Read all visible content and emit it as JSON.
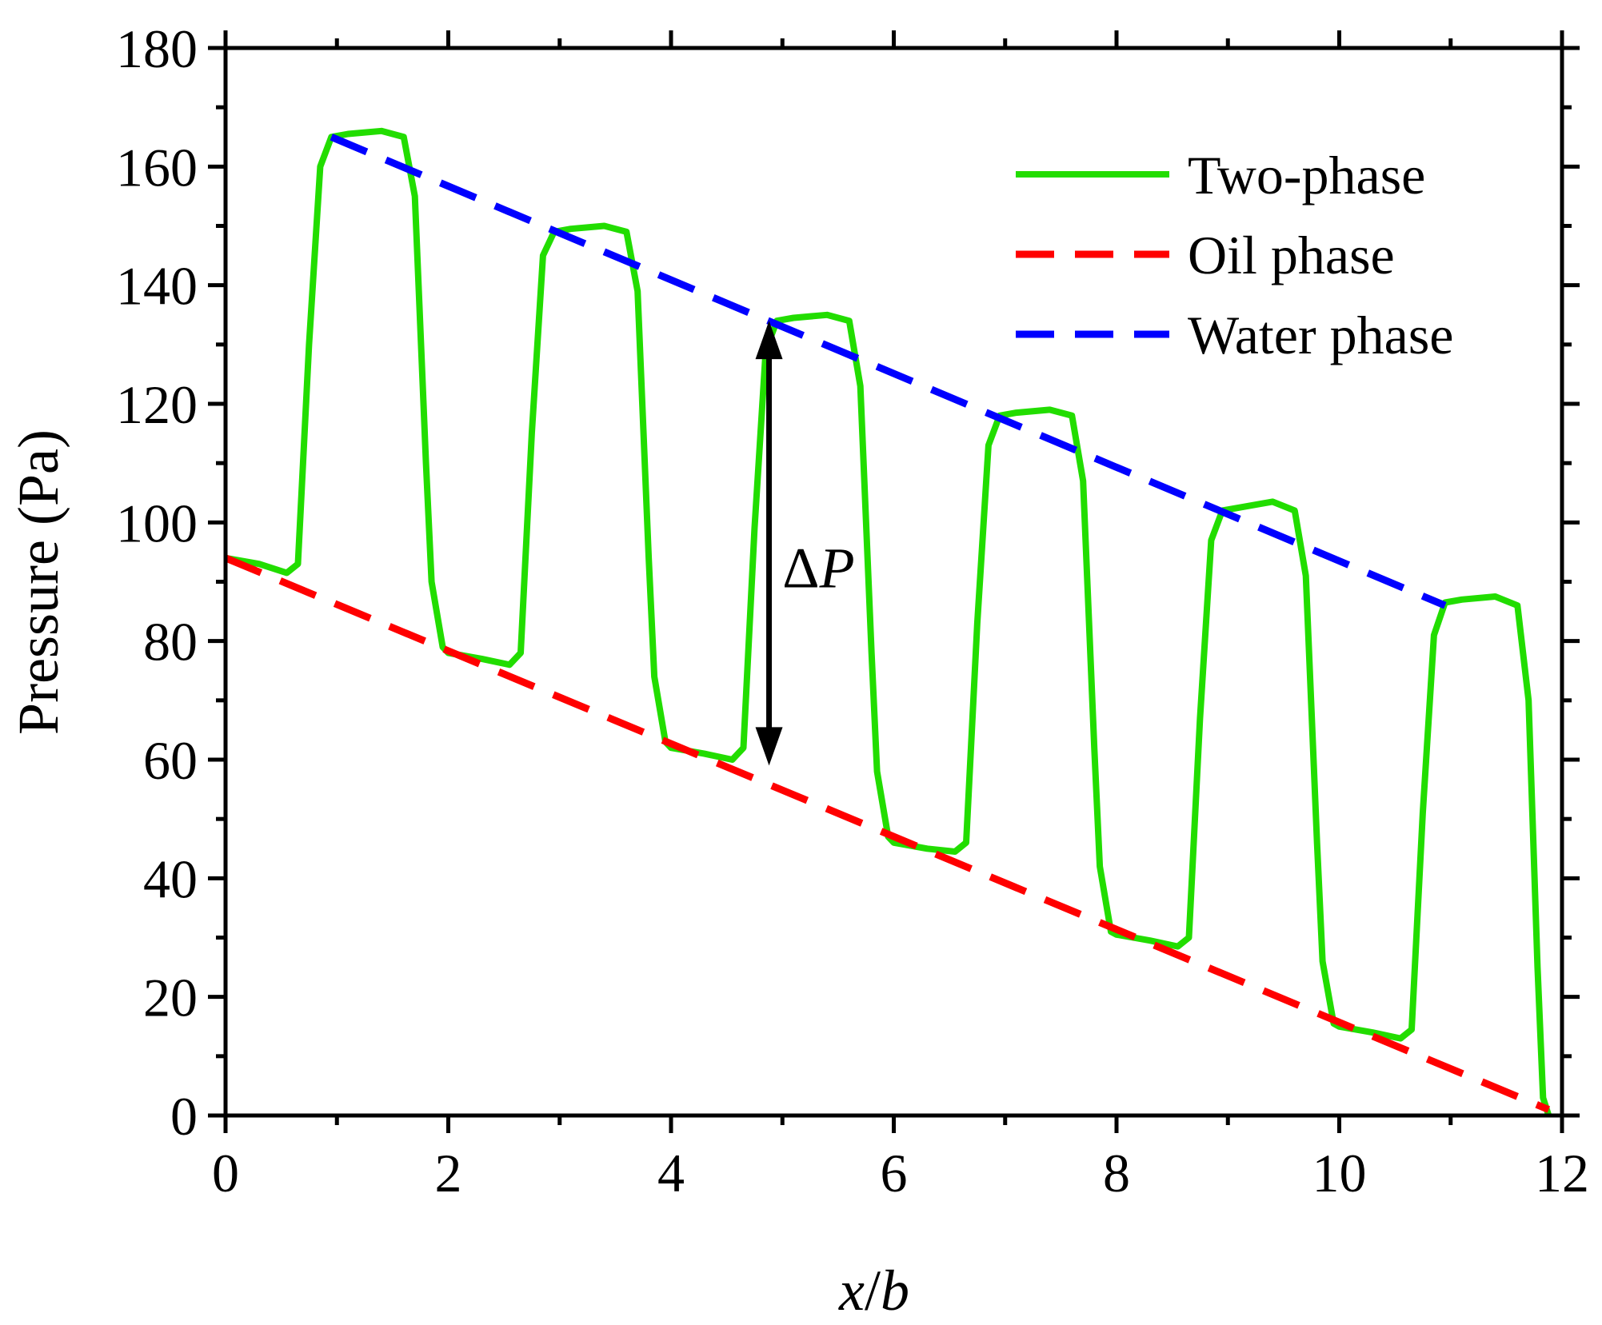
{
  "chart_data": {
    "type": "line",
    "title": "",
    "xlabel_var": "x",
    "xlabel_sep": "/",
    "xlabel_den": "b",
    "ylabel": "Pressure (Pa)",
    "xlim": [
      0,
      12
    ],
    "ylim": [
      0,
      180
    ],
    "xticks": [
      0,
      2,
      4,
      6,
      8,
      10,
      12
    ],
    "yticks": [
      0,
      20,
      40,
      60,
      80,
      100,
      120,
      140,
      160,
      180
    ],
    "grid": false,
    "legend_position": "top-right",
    "series": [
      {
        "name": "Two-phase",
        "style": "solid",
        "color": "#22dd00",
        "x": [
          0,
          0.3,
          0.55,
          0.65,
          0.75,
          0.85,
          0.95,
          1.1,
          1.4,
          1.6,
          1.7,
          1.8,
          1.85,
          1.95,
          2.0,
          2.3,
          2.55,
          2.65,
          2.75,
          2.85,
          2.95,
          3.1,
          3.4,
          3.6,
          3.7,
          3.8,
          3.85,
          3.95,
          4.0,
          4.3,
          4.55,
          4.65,
          4.75,
          4.85,
          4.95,
          5.1,
          5.4,
          5.6,
          5.7,
          5.8,
          5.85,
          5.95,
          6.0,
          6.3,
          6.55,
          6.65,
          6.75,
          6.85,
          6.95,
          7.1,
          7.4,
          7.6,
          7.7,
          7.8,
          7.85,
          7.95,
          8.0,
          8.3,
          8.55,
          8.65,
          8.75,
          8.85,
          8.95,
          9.1,
          9.4,
          9.6,
          9.7,
          9.8,
          9.85,
          9.95,
          10.0,
          10.3,
          10.55,
          10.65,
          10.75,
          10.85,
          10.95,
          11.1,
          11.4,
          11.6,
          11.7,
          11.78,
          11.83,
          11.88
        ],
        "y": [
          94,
          93,
          91.5,
          93,
          130,
          160,
          165,
          165.5,
          166,
          165,
          155,
          110,
          90,
          79,
          78,
          77,
          76,
          78,
          115,
          145,
          149,
          149.5,
          150,
          149,
          139,
          94,
          74,
          63,
          62,
          61,
          60,
          62,
          99,
          129,
          134,
          134.5,
          135,
          134,
          123,
          78,
          58,
          47,
          46,
          45,
          44.5,
          46,
          83,
          113,
          118,
          118.5,
          119,
          118,
          107,
          62,
          42,
          31,
          30.5,
          29.5,
          28.5,
          30,
          67,
          97,
          102,
          102.5,
          103.5,
          102,
          91,
          46,
          26,
          15.5,
          15,
          14,
          13,
          14.5,
          51,
          81,
          86.5,
          87,
          87.5,
          86,
          70,
          25,
          3,
          0
        ]
      },
      {
        "name": "Oil phase",
        "style": "dashed",
        "color": "#ff0000",
        "x": [
          0,
          11.88
        ],
        "y": [
          94,
          1
        ]
      },
      {
        "name": "Water phase",
        "style": "dashed",
        "color": "#0000ff",
        "x": [
          0.95,
          10.95
        ],
        "y": [
          165,
          86
        ]
      }
    ],
    "annotations": [
      {
        "prefix": "Δ",
        "symbol": "P",
        "arrow_x": 4.88,
        "arrow_y_top": 134,
        "arrow_y_bottom": 59,
        "text_x": 5.0,
        "text_y": 92
      }
    ]
  }
}
